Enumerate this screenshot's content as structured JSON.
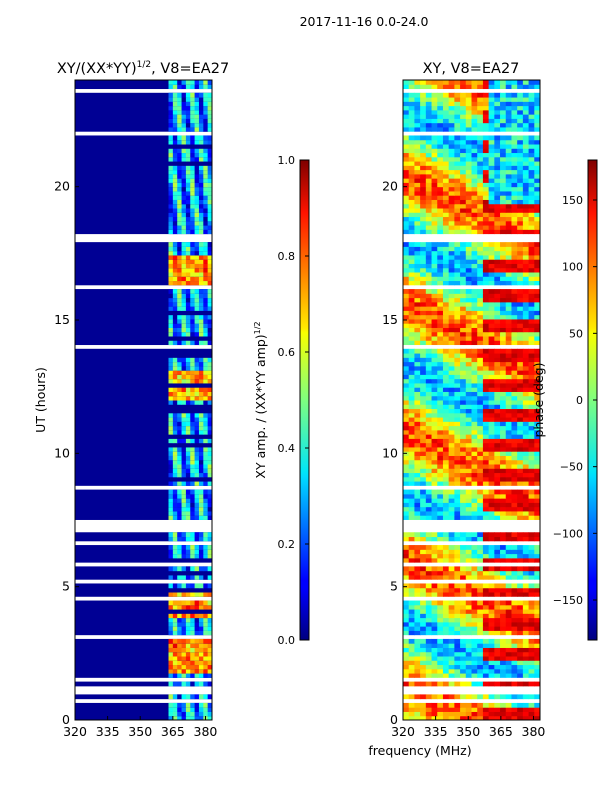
{
  "suptitle": "2017-11-16 0.0-24.0",
  "shared_xlabel": "frequency (MHz)",
  "chart_data": [
    {
      "type": "heatmap",
      "panel": "left",
      "title_main": "XY/(XX*YY)",
      "title_sup": "1/2",
      "title_suffix": ", V8=EA27",
      "xlabel": "frequency (MHz)",
      "ylabel": "UT (hours)",
      "xlim": [
        320,
        383
      ],
      "ylim": [
        0,
        24
      ],
      "xticks": [
        320,
        335,
        350,
        365,
        380
      ],
      "yticks": [
        0,
        5,
        10,
        15,
        20
      ],
      "colormap": "jet",
      "colorbar": {
        "label_main": "XY amp. / (XX*YY amp)",
        "label_sup": "1/2",
        "range": [
          0.0,
          1.0
        ],
        "ticks": [
          0.0,
          0.2,
          0.4,
          0.6,
          0.8,
          1.0
        ],
        "tick_labels": [
          "0.0",
          "0.2",
          "0.4",
          "0.6",
          "0.8",
          "1.0"
        ]
      },
      "description_values": {
        "background_low_freq": 0.0,
        "band_365_382_typical": 0.5,
        "peak_hours": [
          2.3,
          4.3,
          12.5,
          16.8
        ],
        "peak_value": 0.85
      }
    },
    {
      "type": "heatmap",
      "panel": "right",
      "title": "XY, V8=EA27",
      "xlabel": "frequency (MHz)",
      "ylabel": "",
      "xlim": [
        320,
        383
      ],
      "ylim": [
        0,
        24
      ],
      "xticks": [
        320,
        335,
        350,
        365,
        380
      ],
      "yticks": [
        0,
        5,
        10,
        15,
        20
      ],
      "colormap": "jet",
      "colorbar": {
        "label": "phase (deg)",
        "range": [
          -180,
          180
        ],
        "ticks": [
          -150,
          -100,
          -50,
          0,
          50,
          100,
          150
        ],
        "tick_labels": [
          "−150",
          "−100",
          "−50",
          "0",
          "50",
          "100",
          "150"
        ]
      }
    }
  ]
}
